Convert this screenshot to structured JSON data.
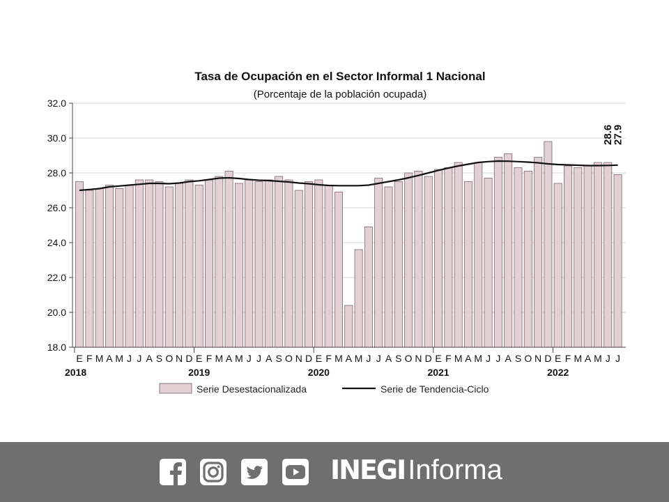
{
  "chart_data": {
    "type": "bar",
    "title": "Tasa de Ocupación en el Sector Informal 1 Nacional",
    "subtitle": "(Porcentaje de la población ocupada)",
    "ylim": [
      18.0,
      32.0
    ],
    "yticks": [
      "18.0",
      "20.0",
      "22.0",
      "24.0",
      "26.0",
      "28.0",
      "30.0",
      "32.0"
    ],
    "month_labels": [
      "E",
      "F",
      "M",
      "A",
      "M",
      "J",
      "J",
      "A",
      "S",
      "O",
      "N",
      "D",
      "E",
      "F",
      "M",
      "A",
      "M",
      "J",
      "J",
      "A",
      "S",
      "O",
      "N",
      "D",
      "E",
      "F",
      "M",
      "A",
      "M",
      "J",
      "J",
      "A",
      "S",
      "O",
      "N",
      "D",
      "E",
      "F",
      "M",
      "A",
      "M",
      "J",
      "J",
      "A",
      "S",
      "O",
      "N",
      "D",
      "E",
      "F",
      "M",
      "A",
      "M",
      "J",
      "J"
    ],
    "year_labels": [
      {
        "index": 0,
        "label": "2018"
      },
      {
        "index": 12,
        "label": "2019"
      },
      {
        "index": 24,
        "label": "2020"
      },
      {
        "index": 36,
        "label": "2021"
      },
      {
        "index": 48,
        "label": "2022"
      }
    ],
    "series": [
      {
        "name": "Serie Desestacionalizada",
        "kind": "bar",
        "color": "#e3d0d5",
        "values": [
          27.5,
          27.0,
          27.1,
          27.3,
          27.1,
          27.3,
          27.6,
          27.6,
          27.5,
          27.2,
          27.4,
          27.6,
          27.3,
          27.6,
          27.8,
          28.1,
          27.4,
          27.6,
          27.5,
          27.6,
          27.8,
          27.6,
          27.0,
          27.5,
          27.6,
          27.3,
          26.9,
          20.4,
          23.6,
          24.9,
          27.7,
          27.2,
          27.5,
          28.0,
          28.1,
          27.8,
          28.2,
          28.3,
          28.6,
          27.5,
          28.6,
          27.7,
          28.9,
          29.1,
          28.3,
          28.1,
          28.9,
          29.8,
          27.4,
          28.4,
          28.3,
          28.4,
          28.6,
          28.6,
          27.9
        ]
      },
      {
        "name": "Serie de Tendencia-Ciclo",
        "kind": "line",
        "color": "#111111",
        "values": [
          27.0,
          27.05,
          27.1,
          27.2,
          27.25,
          27.3,
          27.35,
          27.4,
          27.4,
          27.38,
          27.42,
          27.5,
          27.55,
          27.62,
          27.7,
          27.72,
          27.68,
          27.62,
          27.58,
          27.56,
          27.52,
          27.48,
          27.42,
          27.38,
          27.32,
          27.28,
          27.27,
          27.27,
          27.27,
          27.3,
          27.4,
          27.5,
          27.6,
          27.72,
          27.85,
          28.0,
          28.15,
          28.28,
          28.4,
          28.5,
          28.6,
          28.65,
          28.68,
          28.67,
          28.65,
          28.62,
          28.58,
          28.52,
          28.48,
          28.46,
          28.44,
          28.42,
          28.42,
          28.43,
          28.45
        ]
      }
    ],
    "data_labels": [
      "28.6",
      "27.9"
    ],
    "legend_position": "bottom"
  },
  "footer": {
    "icons": [
      "facebook-icon",
      "instagram-icon",
      "twitter-icon",
      "youtube-icon"
    ],
    "brand_bold": "INEGI",
    "brand_light": "Informa",
    "background": "#6f6f6f"
  }
}
